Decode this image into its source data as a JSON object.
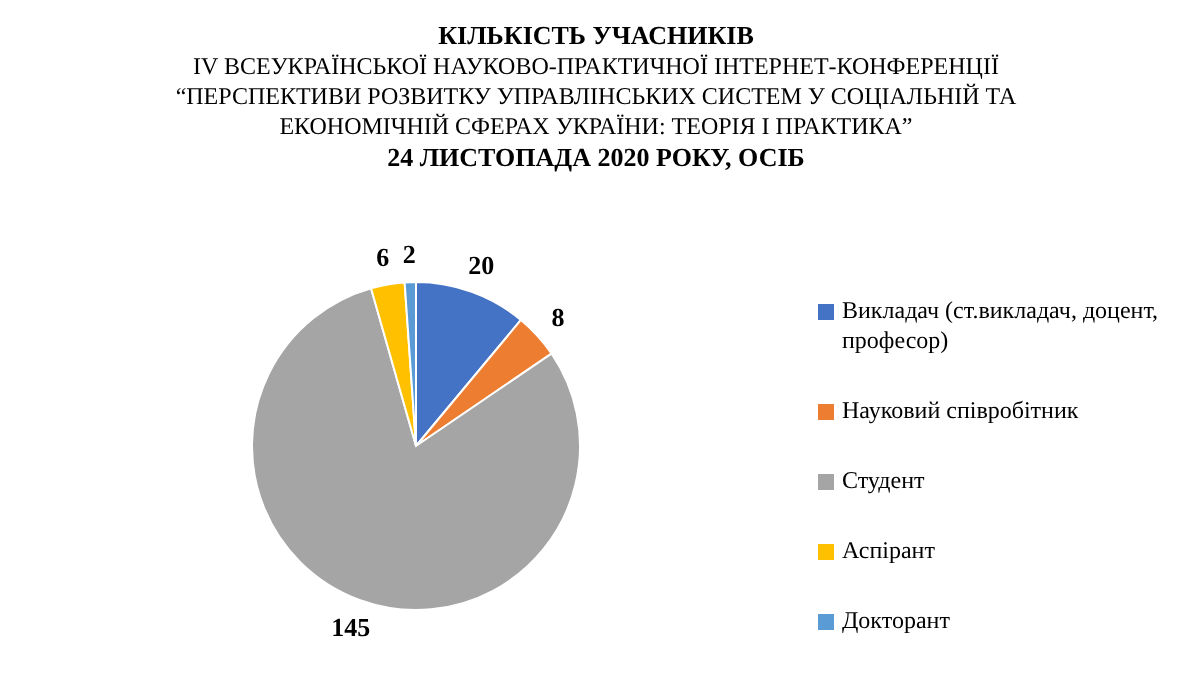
{
  "chart_data": {
    "type": "pie",
    "title": "КІЛЬКІСТЬ УЧАСНИКІВ",
    "subtitle": "IV ВСЕУКРАЇНСЬКОЇ  НАУКОВО-ПРАКТИЧНОЇ  ІНТЕРНЕТ-КОНФЕРЕНЦІЇ  “ПЕРСПЕКТИВИ  РОЗВИТКУ  УПРАВЛІНСЬКИХ  СИСТЕМ У СОЦІАЛЬНІЙ  ТА ЕКОНОМІЧНІЙ  СФЕРАХ УКРАЇНИ:  ТЕОРІЯ І ПРАКТИКА”",
    "annotations": [
      "24 ЛИСТОПАДА  2020 РОКУ, ОСІБ"
    ],
    "categories": [
      "Викладач (ст.викладач, доцент, професор)",
      "Науковий співробітник",
      "Студент",
      "Аспірант",
      "Докторант"
    ],
    "values": [
      20,
      8,
      145,
      6,
      2
    ],
    "colors": [
      "#4472c4",
      "#ed7d31",
      "#a5a5a5",
      "#ffc000",
      "#5b9bd5"
    ],
    "data_labels": true,
    "legend": "right"
  }
}
